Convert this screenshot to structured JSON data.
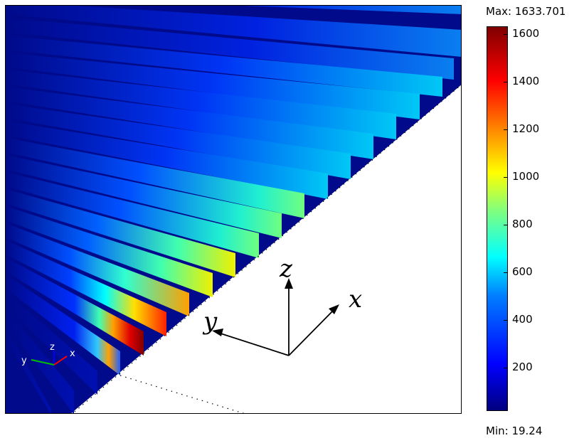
{
  "colorbar": {
    "max_label": "Max: 1633.701",
    "min_label": "Min: 19.24",
    "ticks": [
      "200",
      "400",
      "600",
      "800",
      "1000",
      "1200",
      "1400",
      "1600"
    ],
    "colormap": "jet"
  },
  "axis_triad": {
    "x": "x",
    "y": "y",
    "z": "z"
  },
  "mini_triad": {
    "x": "x",
    "y": "y",
    "z": "z"
  }
}
